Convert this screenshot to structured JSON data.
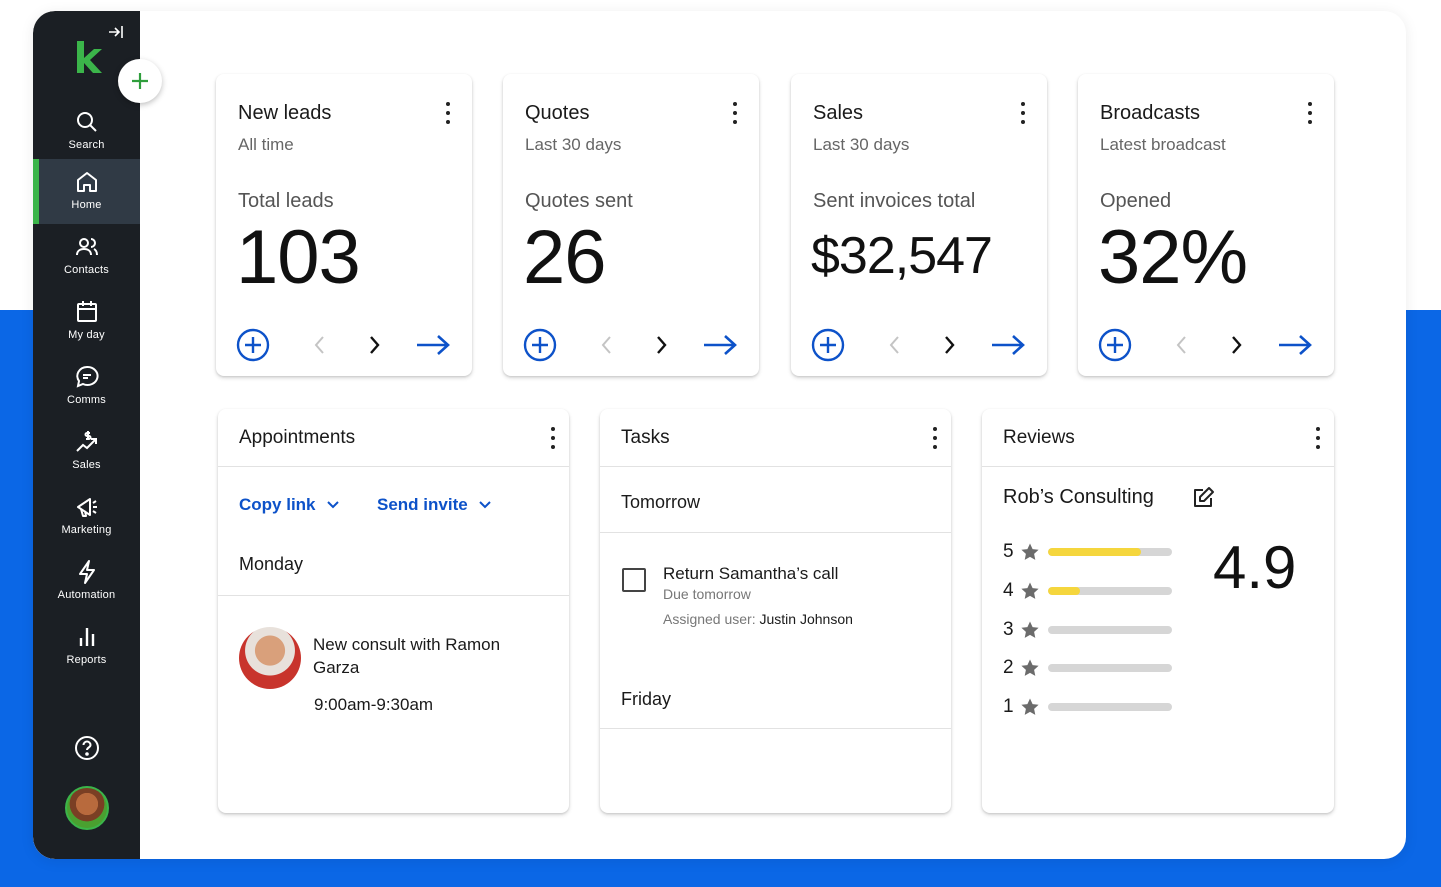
{
  "sidebar": {
    "items": [
      {
        "label": "Search",
        "icon": "search-icon"
      },
      {
        "label": "Home",
        "icon": "home-icon"
      },
      {
        "label": "Contacts",
        "icon": "contacts-icon"
      },
      {
        "label": "My day",
        "icon": "calendar-icon"
      },
      {
        "label": "Comms",
        "icon": "chat-bubble-icon"
      },
      {
        "label": "Sales",
        "icon": "sales-icon"
      },
      {
        "label": "Marketing",
        "icon": "megaphone-icon"
      },
      {
        "label": "Automation",
        "icon": "lightning-icon"
      },
      {
        "label": "Reports",
        "icon": "bar-chart-icon"
      }
    ],
    "active": "Home"
  },
  "colors": {
    "brand_green": "#3bb54a",
    "accent_blue": "#0d52c9",
    "sidebar_bg": "#1b1f24",
    "rating_fill": "#f5d63d"
  },
  "kpis": [
    {
      "title": "New leads",
      "subtitle": "All time",
      "label": "Total leads",
      "value": "103"
    },
    {
      "title": "Quotes",
      "subtitle": "Last 30 days",
      "label": "Quotes sent",
      "value": "26"
    },
    {
      "title": "Sales",
      "subtitle": "Last 30 days",
      "label": "Sent invoices total",
      "value": "$32,547"
    },
    {
      "title": "Broadcasts",
      "subtitle": "Latest broadcast",
      "label": "Opened",
      "value": "32%"
    }
  ],
  "appointments": {
    "title": "Appointments",
    "copy_link": "Copy link",
    "send_invite": "Send invite",
    "day": "Monday",
    "item": {
      "title": "New consult with Ramon Garza",
      "time": "9:00am-9:30am"
    }
  },
  "tasks": {
    "title": "Tasks",
    "group1": "Tomorrow",
    "task": {
      "title": "Return Samantha’s call",
      "due": "Due tomorrow",
      "assigned_label": "Assigned user:",
      "assigned_user": "Justin Johnson"
    },
    "group2": "Friday"
  },
  "reviews": {
    "title": "Reviews",
    "business": "Rob’s Consulting",
    "average": "4.9",
    "ratings": [
      {
        "stars": "5",
        "fill": 0.75
      },
      {
        "stars": "4",
        "fill": 0.26
      },
      {
        "stars": "3",
        "fill": 0
      },
      {
        "stars": "2",
        "fill": 0
      },
      {
        "stars": "1",
        "fill": 0
      }
    ]
  }
}
